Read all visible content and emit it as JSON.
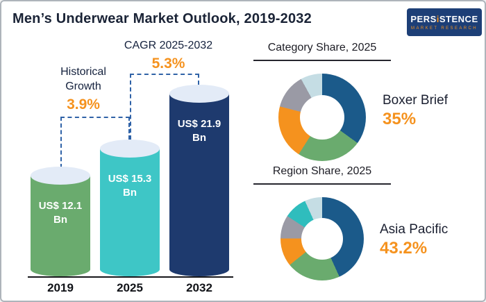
{
  "header": {
    "title": "Men’s Underwear Market Outlook, 2019-2032",
    "logo": {
      "part1": "PERS",
      "part2": "i",
      "part3": "STENCE",
      "line2": "MARKET RESEARCH"
    }
  },
  "colors": {
    "accent_orange": "#f5921e",
    "dashed_connector_blue": "#2f62a7",
    "bar_top_ellipse": "#e3ebf7"
  },
  "chart_data": [
    {
      "type": "bar",
      "title": "Men’s Underwear Market Outlook, 2019-2032",
      "categories": [
        "2019",
        "2025",
        "2032"
      ],
      "values": [
        12.1,
        15.3,
        21.9
      ],
      "unit": "US$ Bn",
      "bar_labels": [
        "US$ 12.1 Bn",
        "US$ 15.3 Bn",
        "US$ 21.9 Bn"
      ],
      "colors": [
        "#6aab6e",
        "#3ec6c6",
        "#1e3a6e"
      ],
      "annotations": [
        {
          "label": "Historical Growth",
          "value": "3.9%"
        },
        {
          "label": "CAGR 2025-2032",
          "value": "5.3%"
        }
      ]
    },
    {
      "type": "pie",
      "subtype": "donut",
      "title": "Category Share, 2025",
      "highlight": {
        "label": "Boxer Brief",
        "value": "35%"
      },
      "segments": [
        {
          "label": "Boxer Brief",
          "value": 35,
          "color": "#1b5a8a"
        },
        {
          "value": 24,
          "color": "#6aab6e"
        },
        {
          "value": 20,
          "color": "#f5921e"
        },
        {
          "value": 13,
          "color": "#9a9aa5"
        },
        {
          "value": 8,
          "color": "#c5dde4"
        }
      ]
    },
    {
      "type": "pie",
      "subtype": "donut",
      "title": "Region Share, 2025",
      "highlight": {
        "label": "Asia Pacific",
        "value": "43.2%"
      },
      "segments": [
        {
          "label": "Asia Pacific",
          "value": 43.2,
          "color": "#1b5a8a"
        },
        {
          "value": 21,
          "color": "#6aab6e"
        },
        {
          "value": 11,
          "color": "#f5921e"
        },
        {
          "value": 9,
          "color": "#9a9aa5"
        },
        {
          "value": 9,
          "color": "#2fbdbd"
        },
        {
          "value": 6.8,
          "color": "#c5dde4"
        }
      ]
    }
  ]
}
